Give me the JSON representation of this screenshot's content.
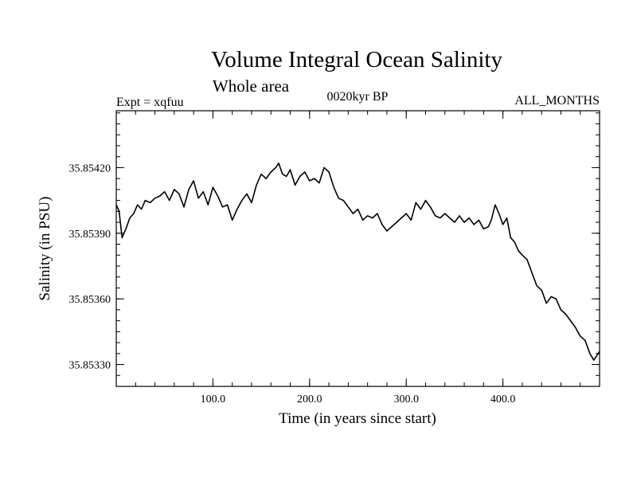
{
  "chart_data": {
    "type": "line",
    "title": "Volume Integral Ocean Salinity",
    "subtitle": "Whole area",
    "experiment_label": "Expt = xqfuu",
    "period_label": "0020kyr BP",
    "months_label": "ALL_MONTHS",
    "xlabel": "Time (in years since start)",
    "ylabel": "Salinity (in PSU)",
    "xlim": [
      0,
      500
    ],
    "ylim": [
      35.8532,
      35.85446
    ],
    "x_ticks": [
      {
        "value": 100,
        "label": "100.0"
      },
      {
        "value": 200,
        "label": "200.0"
      },
      {
        "value": 300,
        "label": "300.0"
      },
      {
        "value": 400,
        "label": "400.0"
      }
    ],
    "x_minor_step": 20,
    "y_ticks": [
      {
        "value": 35.8533,
        "label": "35.85330"
      },
      {
        "value": 35.8536,
        "label": "35.85360"
      },
      {
        "value": 35.8539,
        "label": "35.85390"
      },
      {
        "value": 35.8542,
        "label": "35.85420"
      }
    ],
    "y_minor_step": 5e-05,
    "grid": false,
    "series": [
      {
        "name": "salinity",
        "x": [
          0,
          3,
          6,
          8,
          10,
          14,
          18,
          22,
          26,
          30,
          35,
          40,
          45,
          50,
          55,
          60,
          65,
          70,
          75,
          80,
          85,
          90,
          95,
          100,
          105,
          110,
          115,
          120,
          125,
          130,
          135,
          140,
          145,
          150,
          155,
          160,
          165,
          168,
          172,
          176,
          180,
          185,
          190,
          195,
          200,
          205,
          210,
          215,
          220,
          225,
          230,
          235,
          240,
          245,
          250,
          255,
          260,
          265,
          270,
          275,
          280,
          285,
          290,
          295,
          300,
          305,
          310,
          315,
          320,
          325,
          330,
          335,
          340,
          345,
          350,
          355,
          360,
          365,
          370,
          375,
          380,
          385,
          388,
          392,
          396,
          400,
          404,
          408,
          412,
          416,
          420,
          425,
          430,
          435,
          440,
          445,
          450,
          455,
          460,
          465,
          470,
          475,
          480,
          485,
          490,
          494,
          497,
          500
        ],
        "values": [
          35.85403,
          35.854,
          35.85388,
          35.8539,
          35.85392,
          35.85397,
          35.85399,
          35.85403,
          35.85401,
          35.85405,
          35.85404,
          35.85406,
          35.85407,
          35.85409,
          35.85405,
          35.8541,
          35.85408,
          35.85402,
          35.8541,
          35.85414,
          35.85406,
          35.85409,
          35.85403,
          35.85411,
          35.85407,
          35.85402,
          35.85403,
          35.85396,
          35.85401,
          35.85405,
          35.85408,
          35.85404,
          35.85412,
          35.85417,
          35.85415,
          35.85418,
          35.8542,
          35.85422,
          35.85417,
          35.85416,
          35.85419,
          35.85412,
          35.85416,
          35.85418,
          35.85414,
          35.85415,
          35.85413,
          35.8542,
          35.85418,
          35.85411,
          35.85406,
          35.85405,
          35.85402,
          35.85399,
          35.85401,
          35.85396,
          35.85398,
          35.85397,
          35.85399,
          35.85394,
          35.85391,
          35.85393,
          35.85395,
          35.85397,
          35.85399,
          35.85396,
          35.85404,
          35.85401,
          35.85405,
          35.85402,
          35.85398,
          35.85397,
          35.85399,
          35.85397,
          35.85395,
          35.85398,
          35.85395,
          35.85397,
          35.85394,
          35.85396,
          35.85392,
          35.85393,
          35.85396,
          35.85403,
          35.85399,
          35.85394,
          35.85397,
          35.85388,
          35.85386,
          35.85382,
          35.8538,
          35.85378,
          35.85372,
          35.85366,
          35.85364,
          35.85358,
          35.85361,
          35.8536,
          35.85355,
          35.85353,
          35.8535,
          35.85347,
          35.85343,
          35.85341,
          35.85335,
          35.85332,
          35.85334,
          35.85336
        ]
      }
    ]
  }
}
